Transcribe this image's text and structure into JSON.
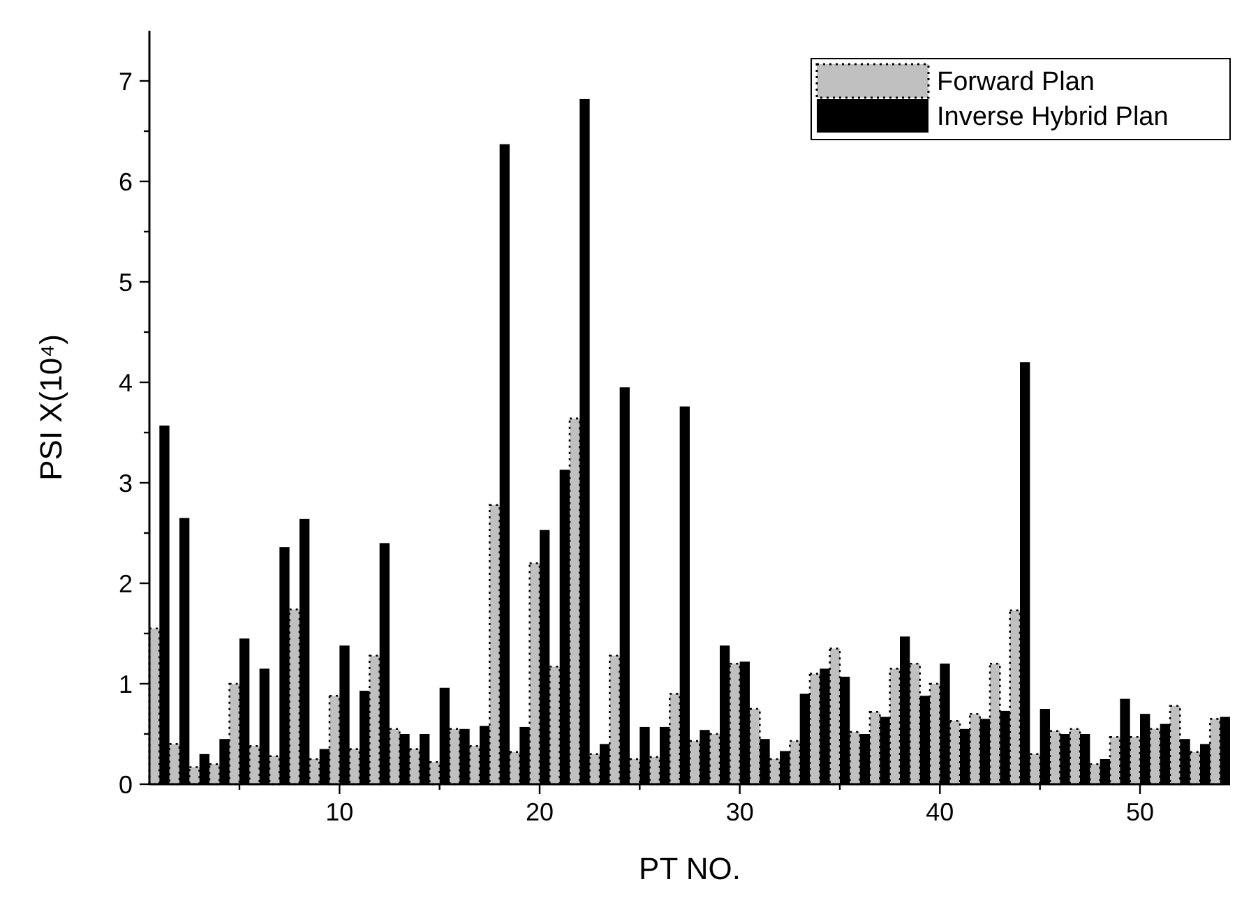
{
  "chart_data": {
    "type": "bar",
    "xlabel": "PT NO.",
    "ylabel": "PSI X(10⁴)",
    "x": [
      1,
      2,
      3,
      4,
      5,
      6,
      7,
      8,
      9,
      10,
      11,
      12,
      13,
      14,
      15,
      16,
      17,
      18,
      19,
      20,
      21,
      22,
      23,
      24,
      25,
      26,
      27,
      28,
      29,
      30,
      31,
      32,
      33,
      34,
      35,
      36,
      37,
      38,
      39,
      40,
      41,
      42,
      43,
      44,
      45,
      46,
      47,
      48,
      49,
      50,
      51,
      52,
      53,
      54
    ],
    "series": [
      {
        "name": "Forward Plan",
        "color": "#c0c0c0",
        "line_style": "dotted",
        "values": [
          1.55,
          0.4,
          0.17,
          0.2,
          1.0,
          0.38,
          0.28,
          1.74,
          0.25,
          0.88,
          0.35,
          1.28,
          0.55,
          0.35,
          0.22,
          0.55,
          0.38,
          2.78,
          0.32,
          2.2,
          1.17,
          3.64,
          0.3,
          1.28,
          0.25,
          0.27,
          0.9,
          0.43,
          0.5,
          1.2,
          0.75,
          0.25,
          0.43,
          1.1,
          1.35,
          0.52,
          0.72,
          1.15,
          1.2,
          1.0,
          0.63,
          0.7,
          1.2,
          1.73,
          0.3,
          0.53,
          0.55,
          0.2,
          0.47,
          0.47,
          0.55,
          0.78,
          0.32,
          0.65
        ]
      },
      {
        "name": "Inverse Hybrid Plan",
        "color": "#000000",
        "values": [
          3.57,
          2.65,
          0.3,
          0.45,
          1.45,
          1.15,
          2.36,
          2.64,
          0.35,
          1.38,
          0.93,
          2.4,
          0.5,
          0.5,
          0.96,
          0.55,
          0.58,
          6.37,
          0.57,
          2.53,
          3.13,
          6.82,
          0.4,
          3.95,
          0.57,
          0.57,
          3.76,
          0.54,
          1.38,
          1.22,
          0.45,
          0.33,
          0.9,
          1.15,
          1.07,
          0.5,
          0.67,
          1.47,
          0.88,
          1.2,
          0.55,
          0.65,
          0.73,
          4.2,
          0.75,
          0.5,
          0.5,
          0.25,
          0.85,
          0.7,
          0.6,
          0.45,
          0.4,
          0.67
        ]
      }
    ],
    "xlim": [
      0.5,
      54.5
    ],
    "xticks": [
      {
        "value": 5,
        "label": null
      },
      10,
      {
        "value": 15,
        "label": null
      },
      20,
      {
        "value": 25,
        "label": null
      },
      30,
      {
        "value": 35,
        "label": null
      },
      40,
      {
        "value": 45,
        "label": null
      },
      50
    ],
    "ylim": [
      0,
      7.5
    ],
    "yticks": [
      0,
      {
        "value": 0.5,
        "label": null
      },
      1,
      {
        "value": 1.5,
        "label": null
      },
      2,
      {
        "value": 2.5,
        "label": null
      },
      3,
      {
        "value": 3.5,
        "label": null
      },
      4,
      {
        "value": 4.5,
        "label": null
      },
      5,
      {
        "value": 5.5,
        "label": null
      },
      6,
      {
        "value": 6.5,
        "label": null
      },
      7
    ],
    "grid": false,
    "legend": "top right"
  }
}
